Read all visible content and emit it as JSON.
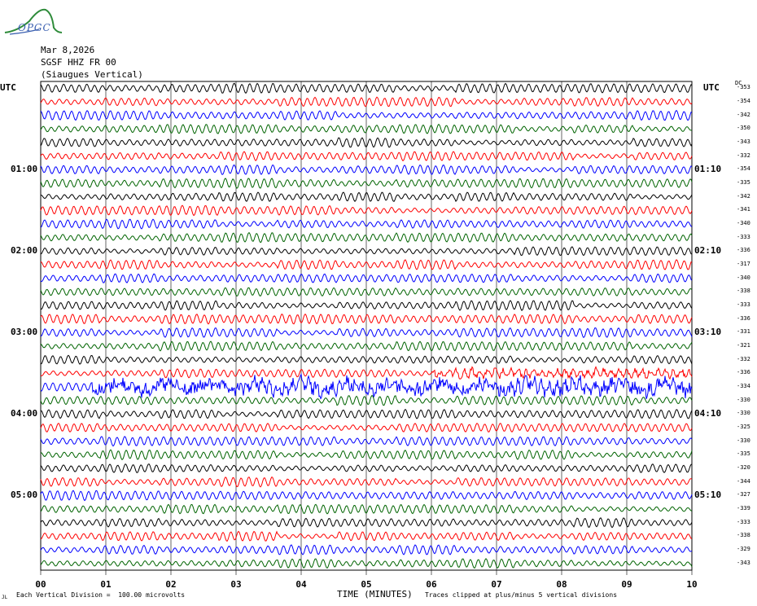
{
  "logo": {
    "text": "OPGC",
    "icon": "volcano-icon",
    "color": "#2e8b3a"
  },
  "header": {
    "date": "Mar 8,2026",
    "station": "SGSF HHZ FR 00",
    "location": "(Siaugues Vertical)"
  },
  "left_utc_label": "UTC",
  "right_utc_label": "UTC",
  "dc_label": "DC",
  "left_time_labels": [
    "01:00",
    "02:00",
    "03:00",
    "04:00",
    "05:00"
  ],
  "right_time_labels": [
    "01:10",
    "02:10",
    "03:10",
    "04:10",
    "05:10"
  ],
  "dc_values": [
    "-353",
    "-354",
    "-342",
    "-350",
    "-343",
    "-332",
    "-354",
    "-335",
    "-342",
    "-341",
    "-340",
    "-333",
    "-336",
    "-317",
    "-340",
    "-338",
    "-333",
    "-336",
    "-331",
    "-321",
    "-332",
    "-336",
    "-334",
    "-330",
    "-330",
    "-325",
    "-330",
    "-335",
    "-320",
    "-344",
    "-327",
    "-339",
    "-333",
    "-338",
    "-329",
    "-343"
  ],
  "footer": {
    "division": "Each Vertical Division =  100.00 microvolts",
    "clip_note": "Traces clipped at plus/minus 5 vertical divisions",
    "corner_mark": "JL"
  },
  "chart_data": {
    "type": "line",
    "title": "",
    "xlabel": "TIME (MINUTES)",
    "x_ticks": [
      "00",
      "01",
      "02",
      "03",
      "04",
      "05",
      "06",
      "07",
      "08",
      "09",
      "10"
    ],
    "xlim": [
      0,
      10
    ],
    "trace_count": 36,
    "trace_colors": [
      "#000000",
      "#ff0000",
      "#0000ff",
      "#006400"
    ],
    "grid": true,
    "notes": "helicorder: 36 traces of 10 minutes each, 00:00 to 06:00 UTC, colors cycle black/red/blue/green",
    "active_traces": [
      {
        "index": 21,
        "from_minute": 6.0,
        "to_minute": 10.0,
        "description": "high-frequency noise burst"
      },
      {
        "index": 22,
        "from_minute": 0.8,
        "to_minute": 10.0,
        "description": "irregular large-amplitude signal"
      }
    ]
  }
}
